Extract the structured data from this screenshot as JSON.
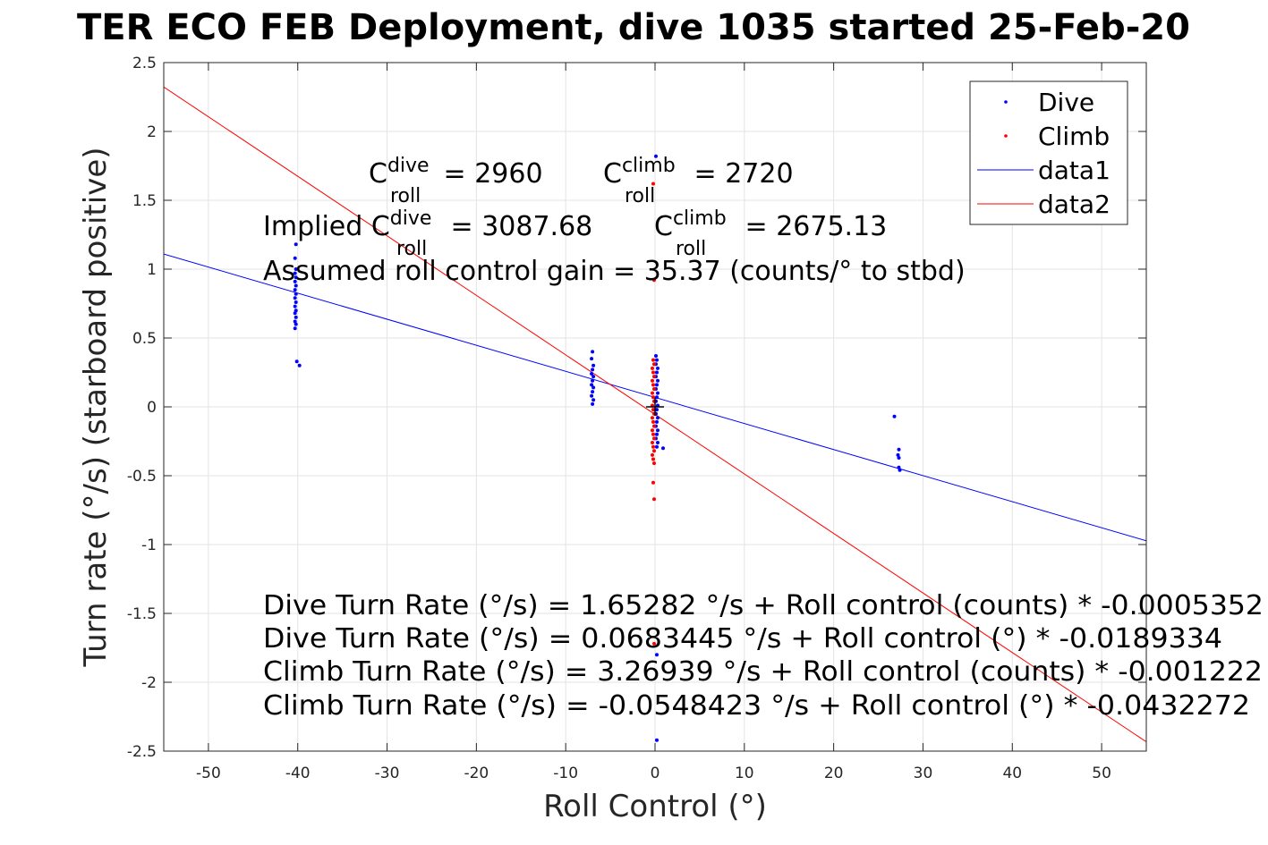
{
  "chart_data": {
    "type": "scatter",
    "title": "TER ECO FEB Deployment, dive 1035 started 25-Feb-20",
    "xlabel": "Roll Control (°)",
    "ylabel": "Turn rate (°/s) (starboard positive)",
    "xlim": [
      -55,
      55
    ],
    "ylim": [
      -2.5,
      2.5
    ],
    "xticks": [
      -50,
      -40,
      -30,
      -20,
      -10,
      0,
      10,
      20,
      30,
      40,
      50
    ],
    "xtick_labels": [
      "-50",
      "-40",
      "-30",
      "-20",
      "-10",
      "0",
      "10",
      "20",
      "30",
      "40",
      "50"
    ],
    "yticks": [
      -2.5,
      -2,
      -1.5,
      -1,
      -0.5,
      0,
      0.5,
      1,
      1.5,
      2,
      2.5
    ],
    "ytick_labels": [
      "-2.5",
      "-2",
      "-1.5",
      "-1",
      "-0.5",
      "0",
      "0.5",
      "1",
      "1.5",
      "2",
      "2.5"
    ],
    "grid": true,
    "legend_placement": "top-right",
    "legend": [
      "Dive",
      "Climb",
      "data1",
      "data2"
    ],
    "series": [
      {
        "name": "Dive",
        "kind": "points",
        "color": "#0000ff",
        "points": [
          [
            -40.2,
            1.18
          ],
          [
            -40.3,
            1.08
          ],
          [
            -40.2,
            1.0
          ],
          [
            -40.3,
            0.97
          ],
          [
            -40.2,
            0.94
          ],
          [
            -40.3,
            0.91
          ],
          [
            -40.2,
            0.88
          ],
          [
            -40.3,
            0.85
          ],
          [
            -40.2,
            0.82
          ],
          [
            -40.3,
            0.79
          ],
          [
            -40.2,
            0.76
          ],
          [
            -40.3,
            0.73
          ],
          [
            -40.2,
            0.7
          ],
          [
            -40.3,
            0.68
          ],
          [
            -40.2,
            0.65
          ],
          [
            -40.3,
            0.62
          ],
          [
            -40.2,
            0.6
          ],
          [
            -40.3,
            0.57
          ],
          [
            -40.1,
            0.33
          ],
          [
            -39.8,
            0.3
          ],
          [
            -7.0,
            0.4
          ],
          [
            -7.1,
            0.35
          ],
          [
            -6.9,
            0.3
          ],
          [
            -7.0,
            0.27
          ],
          [
            -7.1,
            0.24
          ],
          [
            -6.9,
            0.22
          ],
          [
            -7.0,
            0.19
          ],
          [
            -7.1,
            0.16
          ],
          [
            -6.9,
            0.14
          ],
          [
            -7.0,
            0.11
          ],
          [
            -7.1,
            0.08
          ],
          [
            -6.9,
            0.05
          ],
          [
            -7.0,
            0.02
          ],
          [
            0.1,
            1.82
          ],
          [
            0.1,
            0.37
          ],
          [
            0.2,
            0.34
          ],
          [
            0.1,
            0.31
          ],
          [
            0.3,
            0.28
          ],
          [
            0.2,
            0.25
          ],
          [
            0.1,
            0.22
          ],
          [
            0.3,
            0.19
          ],
          [
            0.2,
            0.16
          ],
          [
            0.1,
            0.13
          ],
          [
            0.3,
            0.1
          ],
          [
            0.2,
            0.07
          ],
          [
            0.1,
            0.04
          ],
          [
            0.3,
            0.01
          ],
          [
            0.2,
            -0.02
          ],
          [
            0.1,
            -0.05
          ],
          [
            0.3,
            -0.08
          ],
          [
            0.2,
            -0.11
          ],
          [
            0.1,
            -0.14
          ],
          [
            0.3,
            -0.17
          ],
          [
            0.2,
            -0.2
          ],
          [
            0.1,
            -0.23
          ],
          [
            0.3,
            -0.26
          ],
          [
            0.2,
            -0.29
          ],
          [
            0.9,
            -0.3
          ],
          [
            0.2,
            -1.8
          ],
          [
            0.2,
            -2.42
          ],
          [
            26.8,
            -0.07
          ],
          [
            27.3,
            -0.31
          ],
          [
            27.2,
            -0.35
          ],
          [
            27.3,
            -0.37
          ],
          [
            27.3,
            -0.44
          ],
          [
            27.4,
            -0.46
          ]
        ]
      },
      {
        "name": "Climb",
        "kind": "points",
        "color": "#ff0000",
        "points": [
          [
            -0.2,
            1.62
          ],
          [
            -0.1,
            0.92
          ],
          [
            -0.2,
            0.34
          ],
          [
            -0.1,
            0.31
          ],
          [
            -0.3,
            0.28
          ],
          [
            -0.2,
            0.25
          ],
          [
            -0.1,
            0.22
          ],
          [
            -0.3,
            0.19
          ],
          [
            -0.2,
            0.16
          ],
          [
            -0.1,
            0.13
          ],
          [
            -0.3,
            0.1
          ],
          [
            -0.2,
            0.07
          ],
          [
            -0.1,
            0.04
          ],
          [
            -0.3,
            0.01
          ],
          [
            -0.2,
            -0.02
          ],
          [
            -0.1,
            -0.05
          ],
          [
            -0.3,
            -0.08
          ],
          [
            -0.2,
            -0.11
          ],
          [
            -0.1,
            -0.14
          ],
          [
            -0.3,
            -0.17
          ],
          [
            -0.2,
            -0.2
          ],
          [
            -0.1,
            -0.23
          ],
          [
            -0.3,
            -0.26
          ],
          [
            -0.2,
            -0.29
          ],
          [
            -0.1,
            -0.32
          ],
          [
            -0.3,
            -0.35
          ],
          [
            -0.2,
            -0.38
          ],
          [
            -0.1,
            -0.41
          ],
          [
            -0.2,
            -0.55
          ],
          [
            -0.1,
            -0.67
          ],
          [
            -0.1,
            -1.72
          ]
        ]
      },
      {
        "name": "data1",
        "kind": "line",
        "color": "#0000ff",
        "points": [
          [
            -55,
            1.1097
          ],
          [
            55,
            -0.9728
          ]
        ]
      },
      {
        "name": "data2",
        "kind": "line",
        "color": "#ff0000",
        "points": [
          [
            -55,
            2.3227
          ],
          [
            55,
            -2.4323
          ]
        ]
      }
    ],
    "origin_marker": [
      0,
      0
    ],
    "annotations": {
      "cdive": {
        "C": "C",
        "sup": "dive",
        "sub": "roll",
        "rest": " = 2960"
      },
      "cclimb": {
        "C": "C",
        "sup": "climb",
        "sub": "roll",
        "rest": " = 2720"
      },
      "implied_dive": {
        "prefix": "Implied C",
        "sup": "dive",
        "sub": "roll",
        "rest": " = 3087.68"
      },
      "implied_climb": {
        "C": "C",
        "sup": "climb",
        "sub": "roll",
        "rest": " = 2675.13"
      },
      "gain": "Assumed roll control gain = 35.37 (counts/° to stbd)",
      "eq1": "Dive Turn Rate (°/s) = 1.65282 °/s + Roll control (counts) * -0.0005352",
      "eq2": "Dive Turn Rate (°/s) = 0.0683445 °/s + Roll control (°) * -0.0189334",
      "eq3": "Climb Turn Rate (°/s) = 3.26939 °/s + Roll control (counts) * -0.001222",
      "eq4": "Climb Turn Rate (°/s) = -0.0548423 °/s + Roll control (°) * -0.0432272"
    }
  }
}
